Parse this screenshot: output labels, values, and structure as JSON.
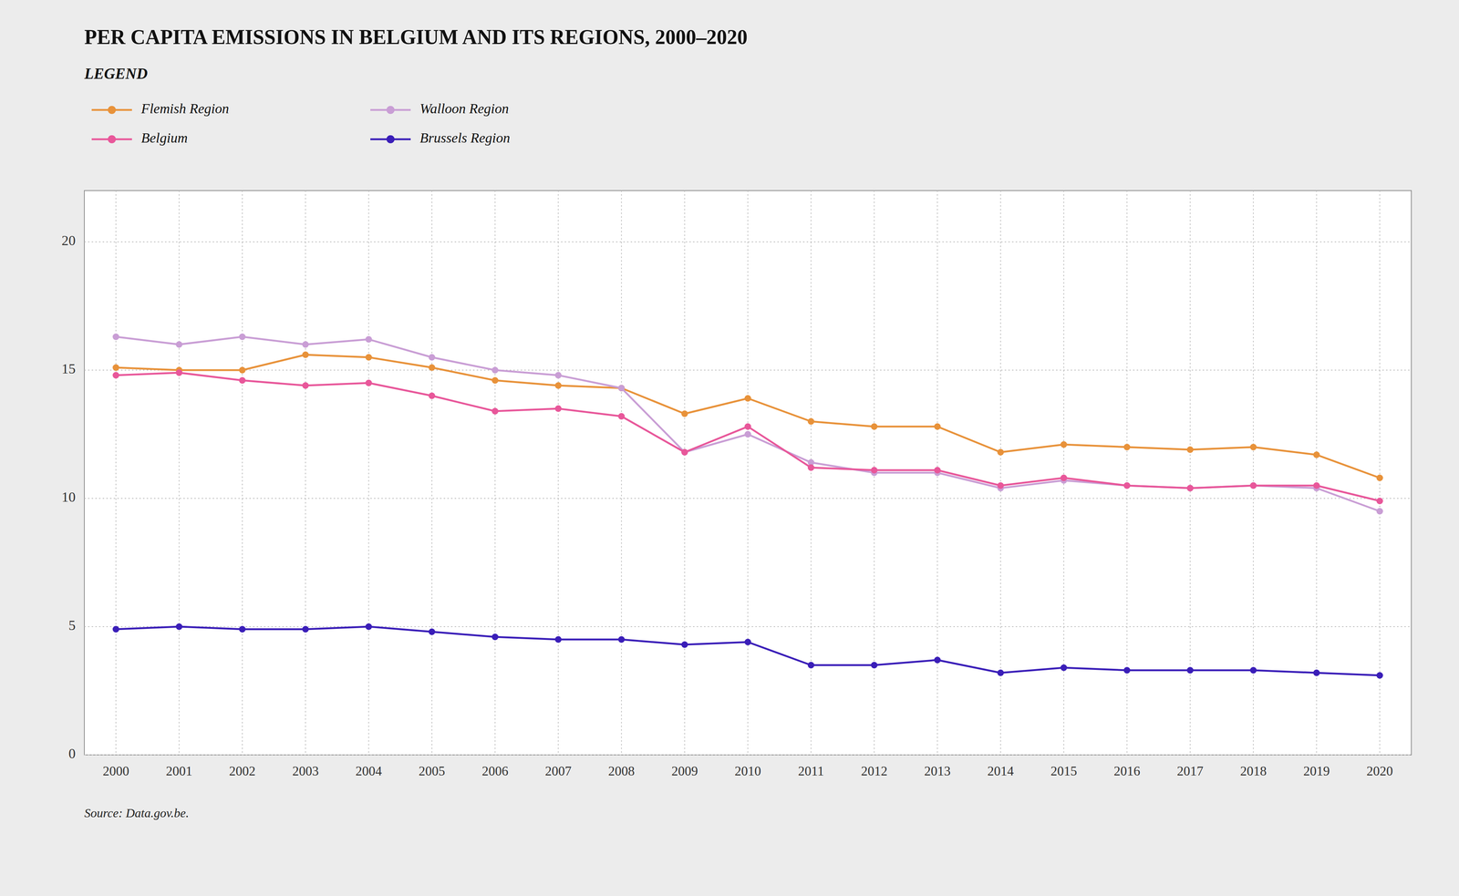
{
  "chart_data": {
    "type": "line",
    "title": "PER CAPITA EMISSIONS IN BELGIUM AND ITS REGIONS, 2000–2020",
    "annotations": [
      "Source: Data.gov.be."
    ],
    "legend_title": "LEGEND",
    "legend": "top-left",
    "grid": true,
    "x": [
      2000,
      2001,
      2002,
      2003,
      2004,
      2005,
      2006,
      2007,
      2008,
      2009,
      2010,
      2011,
      2012,
      2013,
      2014,
      2015,
      2016,
      2017,
      2018,
      2019,
      2020
    ],
    "xlim": [
      1999.5,
      2020.5
    ],
    "xticks": [
      2000,
      2001,
      2002,
      2003,
      2004,
      2005,
      2006,
      2007,
      2008,
      2009,
      2010,
      2011,
      2012,
      2013,
      2014,
      2015,
      2016,
      2017,
      2018,
      2019,
      2020
    ],
    "ylim": [
      0,
      22
    ],
    "yticks": [
      0,
      5,
      10,
      15,
      20
    ],
    "series": [
      {
        "name": "Flemish Region",
        "color": "#e8923a",
        "marker": "circle",
        "line_style": "solid",
        "values": [
          15.1,
          15.0,
          15.0,
          15.6,
          15.5,
          15.1,
          14.6,
          14.4,
          14.3,
          13.3,
          13.9,
          13.0,
          12.8,
          12.8,
          11.8,
          12.1,
          12.0,
          11.9,
          12.0,
          11.7,
          10.8
        ]
      },
      {
        "name": "Walloon Region",
        "color": "#c99ed5",
        "marker": "circle",
        "line_style": "solid",
        "values": [
          16.3,
          16.0,
          16.3,
          16.0,
          16.2,
          15.5,
          15.0,
          14.8,
          14.3,
          11.8,
          12.5,
          11.4,
          11.0,
          11.0,
          10.4,
          10.7,
          10.5,
          10.4,
          10.5,
          10.4,
          9.5
        ]
      },
      {
        "name": "Belgium",
        "color": "#e8579a",
        "marker": "circle",
        "line_style": "solid",
        "values": [
          14.8,
          14.9,
          14.6,
          14.4,
          14.5,
          14.0,
          13.4,
          13.5,
          13.2,
          11.8,
          12.8,
          11.2,
          11.1,
          11.1,
          10.5,
          10.8,
          10.5,
          10.4,
          10.5,
          10.5,
          9.9
        ]
      },
      {
        "name": "Brussels Region",
        "color": "#3a1eb8",
        "marker": "circle",
        "line_style": "solid",
        "values": [
          4.9,
          5.0,
          4.9,
          4.9,
          5.0,
          4.8,
          4.6,
          4.5,
          4.5,
          4.3,
          4.4,
          3.5,
          3.5,
          3.7,
          3.2,
          3.4,
          3.3,
          3.3,
          3.3,
          3.2,
          3.1
        ]
      }
    ]
  }
}
